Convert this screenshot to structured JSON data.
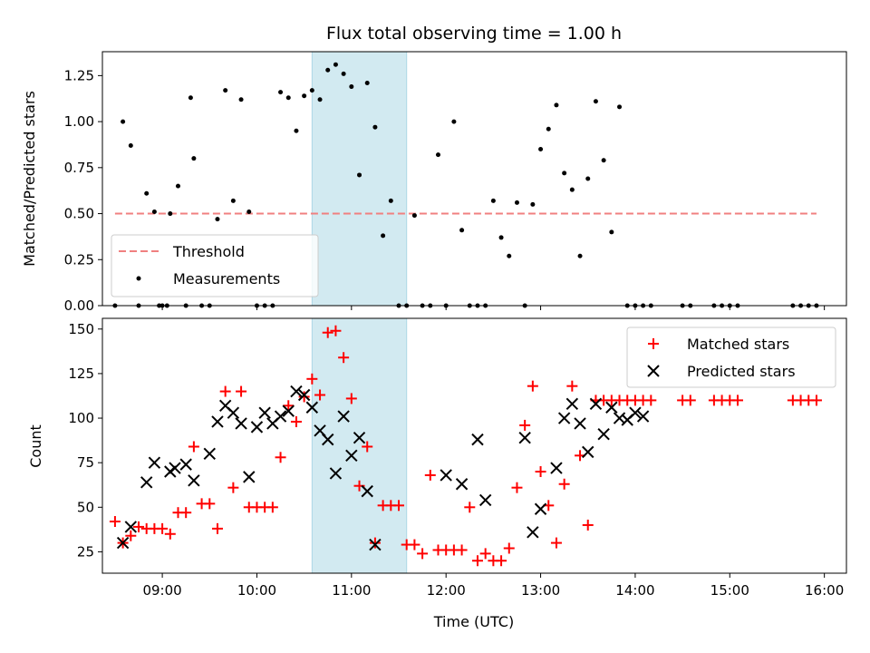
{
  "chart_data": [
    {
      "type": "scatter",
      "title": "Flux total observing time = 1.00 h",
      "xlabel": "",
      "ylabel": "Matched/Predicted stars",
      "xlim": [
        "08:22",
        "16:14"
      ],
      "ylim": [
        0,
        1.38
      ],
      "yticks": [
        0.0,
        0.25,
        0.5,
        0.75,
        1.0,
        1.25
      ],
      "ytick_labels": [
        "0.00",
        "0.25",
        "0.50",
        "0.75",
        "1.00",
        "1.25"
      ],
      "shaded_span": [
        "10:35",
        "11:35"
      ],
      "shade_color": "#add8e6",
      "legend_position": "lower-left",
      "threshold": {
        "name": "Threshold",
        "y": 0.5,
        "x_range": [
          "08:30",
          "15:55"
        ],
        "color": "#f08080"
      },
      "series": [
        {
          "name": "Measurements",
          "color": "#000000",
          "marker": "dot",
          "x": [
            "08:30",
            "08:35",
            "08:40",
            "08:45",
            "08:50",
            "08:55",
            "08:58",
            "09:00",
            "09:03",
            "09:05",
            "09:10",
            "09:15",
            "09:18",
            "09:20",
            "09:25",
            "09:30",
            "09:35",
            "09:40",
            "09:45",
            "09:50",
            "09:55",
            "10:00",
            "10:05",
            "10:10",
            "10:15",
            "10:20",
            "10:25",
            "10:30",
            "10:35",
            "10:40",
            "10:45",
            "10:50",
            "10:55",
            "11:00",
            "11:05",
            "11:10",
            "11:15",
            "11:20",
            "11:25",
            "11:30",
            "11:35",
            "11:40",
            "11:45",
            "11:50",
            "11:55",
            "12:00",
            "12:05",
            "12:10",
            "12:15",
            "12:20",
            "12:25",
            "12:30",
            "12:35",
            "12:40",
            "12:45",
            "12:50",
            "12:55",
            "13:00",
            "13:05",
            "13:10",
            "13:15",
            "13:20",
            "13:25",
            "13:30",
            "13:35",
            "13:40",
            "13:45",
            "13:50",
            "13:55",
            "14:00",
            "14:05",
            "14:10",
            "14:30",
            "14:35",
            "14:50",
            "14:55",
            "15:00",
            "15:05",
            "15:40",
            "15:45",
            "15:50",
            "15:55"
          ],
          "y": [
            0.0,
            1.0,
            0.87,
            0.0,
            0.61,
            0.51,
            0.0,
            0.0,
            0.0,
            0.5,
            0.65,
            0.0,
            1.13,
            0.8,
            0.0,
            0.0,
            0.47,
            1.17,
            0.57,
            1.12,
            0.51,
            0.0,
            0.0,
            0.0,
            1.16,
            1.13,
            0.95,
            1.14,
            1.17,
            1.12,
            1.28,
            1.31,
            1.26,
            1.19,
            0.71,
            1.21,
            0.97,
            0.38,
            0.57,
            0.0,
            0.0,
            0.49,
            0.0,
            0.0,
            0.82,
            0.0,
            1.0,
            0.41,
            0.0,
            0.0,
            0.0,
            0.57,
            0.37,
            0.27,
            0.56,
            0.0,
            0.55,
            0.85,
            0.96,
            1.09,
            0.72,
            0.63,
            0.27,
            0.69,
            1.11,
            0.79,
            0.4,
            1.08,
            0.0,
            0.0,
            0.0,
            0.0,
            0.0,
            0.0,
            0.0,
            0.0,
            0.0,
            0.0,
            0.0,
            0.0,
            0.0,
            0.0
          ]
        }
      ]
    },
    {
      "type": "scatter",
      "title": "",
      "xlabel": "Time (UTC)",
      "ylabel": "Count",
      "xlim": [
        "08:22",
        "16:14"
      ],
      "ylim": [
        13,
        156
      ],
      "yticks": [
        25,
        50,
        75,
        100,
        125,
        150
      ],
      "ytick_labels": [
        "25",
        "50",
        "75",
        "100",
        "125",
        "150"
      ],
      "xticks": [
        "09:00",
        "10:00",
        "11:00",
        "12:00",
        "13:00",
        "14:00",
        "15:00",
        "16:00"
      ],
      "xtick_labels": [
        "09:00",
        "10:00",
        "11:00",
        "12:00",
        "13:00",
        "14:00",
        "15:00",
        "16:00"
      ],
      "shaded_span": [
        "10:35",
        "11:35"
      ],
      "shade_color": "#add8e6",
      "legend_position": "top-right",
      "series": [
        {
          "name": "Matched stars",
          "color": "#ff0000",
          "marker": "plus",
          "x": [
            "08:30",
            "08:35",
            "08:40",
            "08:45",
            "08:50",
            "08:55",
            "09:00",
            "09:05",
            "09:10",
            "09:15",
            "09:20",
            "09:25",
            "09:30",
            "09:35",
            "09:40",
            "09:45",
            "09:50",
            "09:55",
            "10:00",
            "10:05",
            "10:10",
            "10:15",
            "10:20",
            "10:25",
            "10:30",
            "10:35",
            "10:40",
            "10:45",
            "10:50",
            "10:55",
            "11:00",
            "11:05",
            "11:10",
            "11:15",
            "11:20",
            "11:25",
            "11:30",
            "11:35",
            "11:40",
            "11:45",
            "11:50",
            "11:55",
            "12:00",
            "12:05",
            "12:10",
            "12:15",
            "12:20",
            "12:25",
            "12:30",
            "12:35",
            "12:40",
            "12:45",
            "12:50",
            "12:55",
            "13:00",
            "13:05",
            "13:10",
            "13:15",
            "13:20",
            "13:25",
            "13:30",
            "13:35",
            "13:40",
            "13:45",
            "13:50",
            "13:55",
            "14:00",
            "14:05",
            "14:10",
            "14:30",
            "14:35",
            "14:50",
            "14:55",
            "15:00",
            "15:05",
            "15:40",
            "15:45",
            "15:50",
            "15:55"
          ],
          "y": [
            42,
            30,
            34,
            39,
            38,
            38,
            38,
            35,
            47,
            47,
            84,
            52,
            52,
            38,
            115,
            61,
            115,
            50,
            50,
            50,
            50,
            78,
            107,
            98,
            112,
            122,
            113,
            148,
            149,
            134,
            111,
            62,
            84,
            30,
            51,
            51,
            51,
            29,
            29,
            24,
            68,
            26,
            26,
            26,
            26,
            50,
            20,
            24,
            20,
            20,
            27,
            61,
            96,
            118,
            70,
            51,
            30,
            63,
            118,
            79,
            40,
            110,
            110,
            110,
            110,
            110,
            110,
            110,
            110,
            110,
            110,
            110,
            110,
            110,
            110,
            110,
            110,
            110,
            110
          ]
        },
        {
          "name": "Predicted stars",
          "color": "#000000",
          "marker": "x",
          "x": [
            "08:35",
            "08:40",
            "08:50",
            "08:55",
            "09:05",
            "09:08",
            "09:15",
            "09:20",
            "09:30",
            "09:35",
            "09:40",
            "09:45",
            "09:50",
            "09:55",
            "10:00",
            "10:05",
            "10:10",
            "10:15",
            "10:20",
            "10:25",
            "10:30",
            "10:35",
            "10:40",
            "10:45",
            "10:50",
            "10:55",
            "11:00",
            "11:05",
            "11:10",
            "11:15",
            "12:00",
            "12:10",
            "12:20",
            "12:25",
            "12:50",
            "12:55",
            "13:00",
            "13:10",
            "13:15",
            "13:20",
            "13:25",
            "13:30",
            "13:35",
            "13:40",
            "13:45",
            "13:50",
            "13:55",
            "14:00",
            "14:05"
          ],
          "y": [
            30,
            39,
            64,
            75,
            70,
            72,
            74,
            65,
            80,
            98,
            107,
            103,
            97,
            67,
            95,
            103,
            97,
            101,
            104,
            115,
            113,
            106,
            93,
            88,
            69,
            101,
            79,
            89,
            59,
            29,
            68,
            63,
            88,
            54,
            89,
            36,
            49,
            72,
            100,
            108,
            97,
            81,
            108,
            91,
            106,
            100,
            99,
            103,
            101
          ]
        }
      ]
    }
  ]
}
